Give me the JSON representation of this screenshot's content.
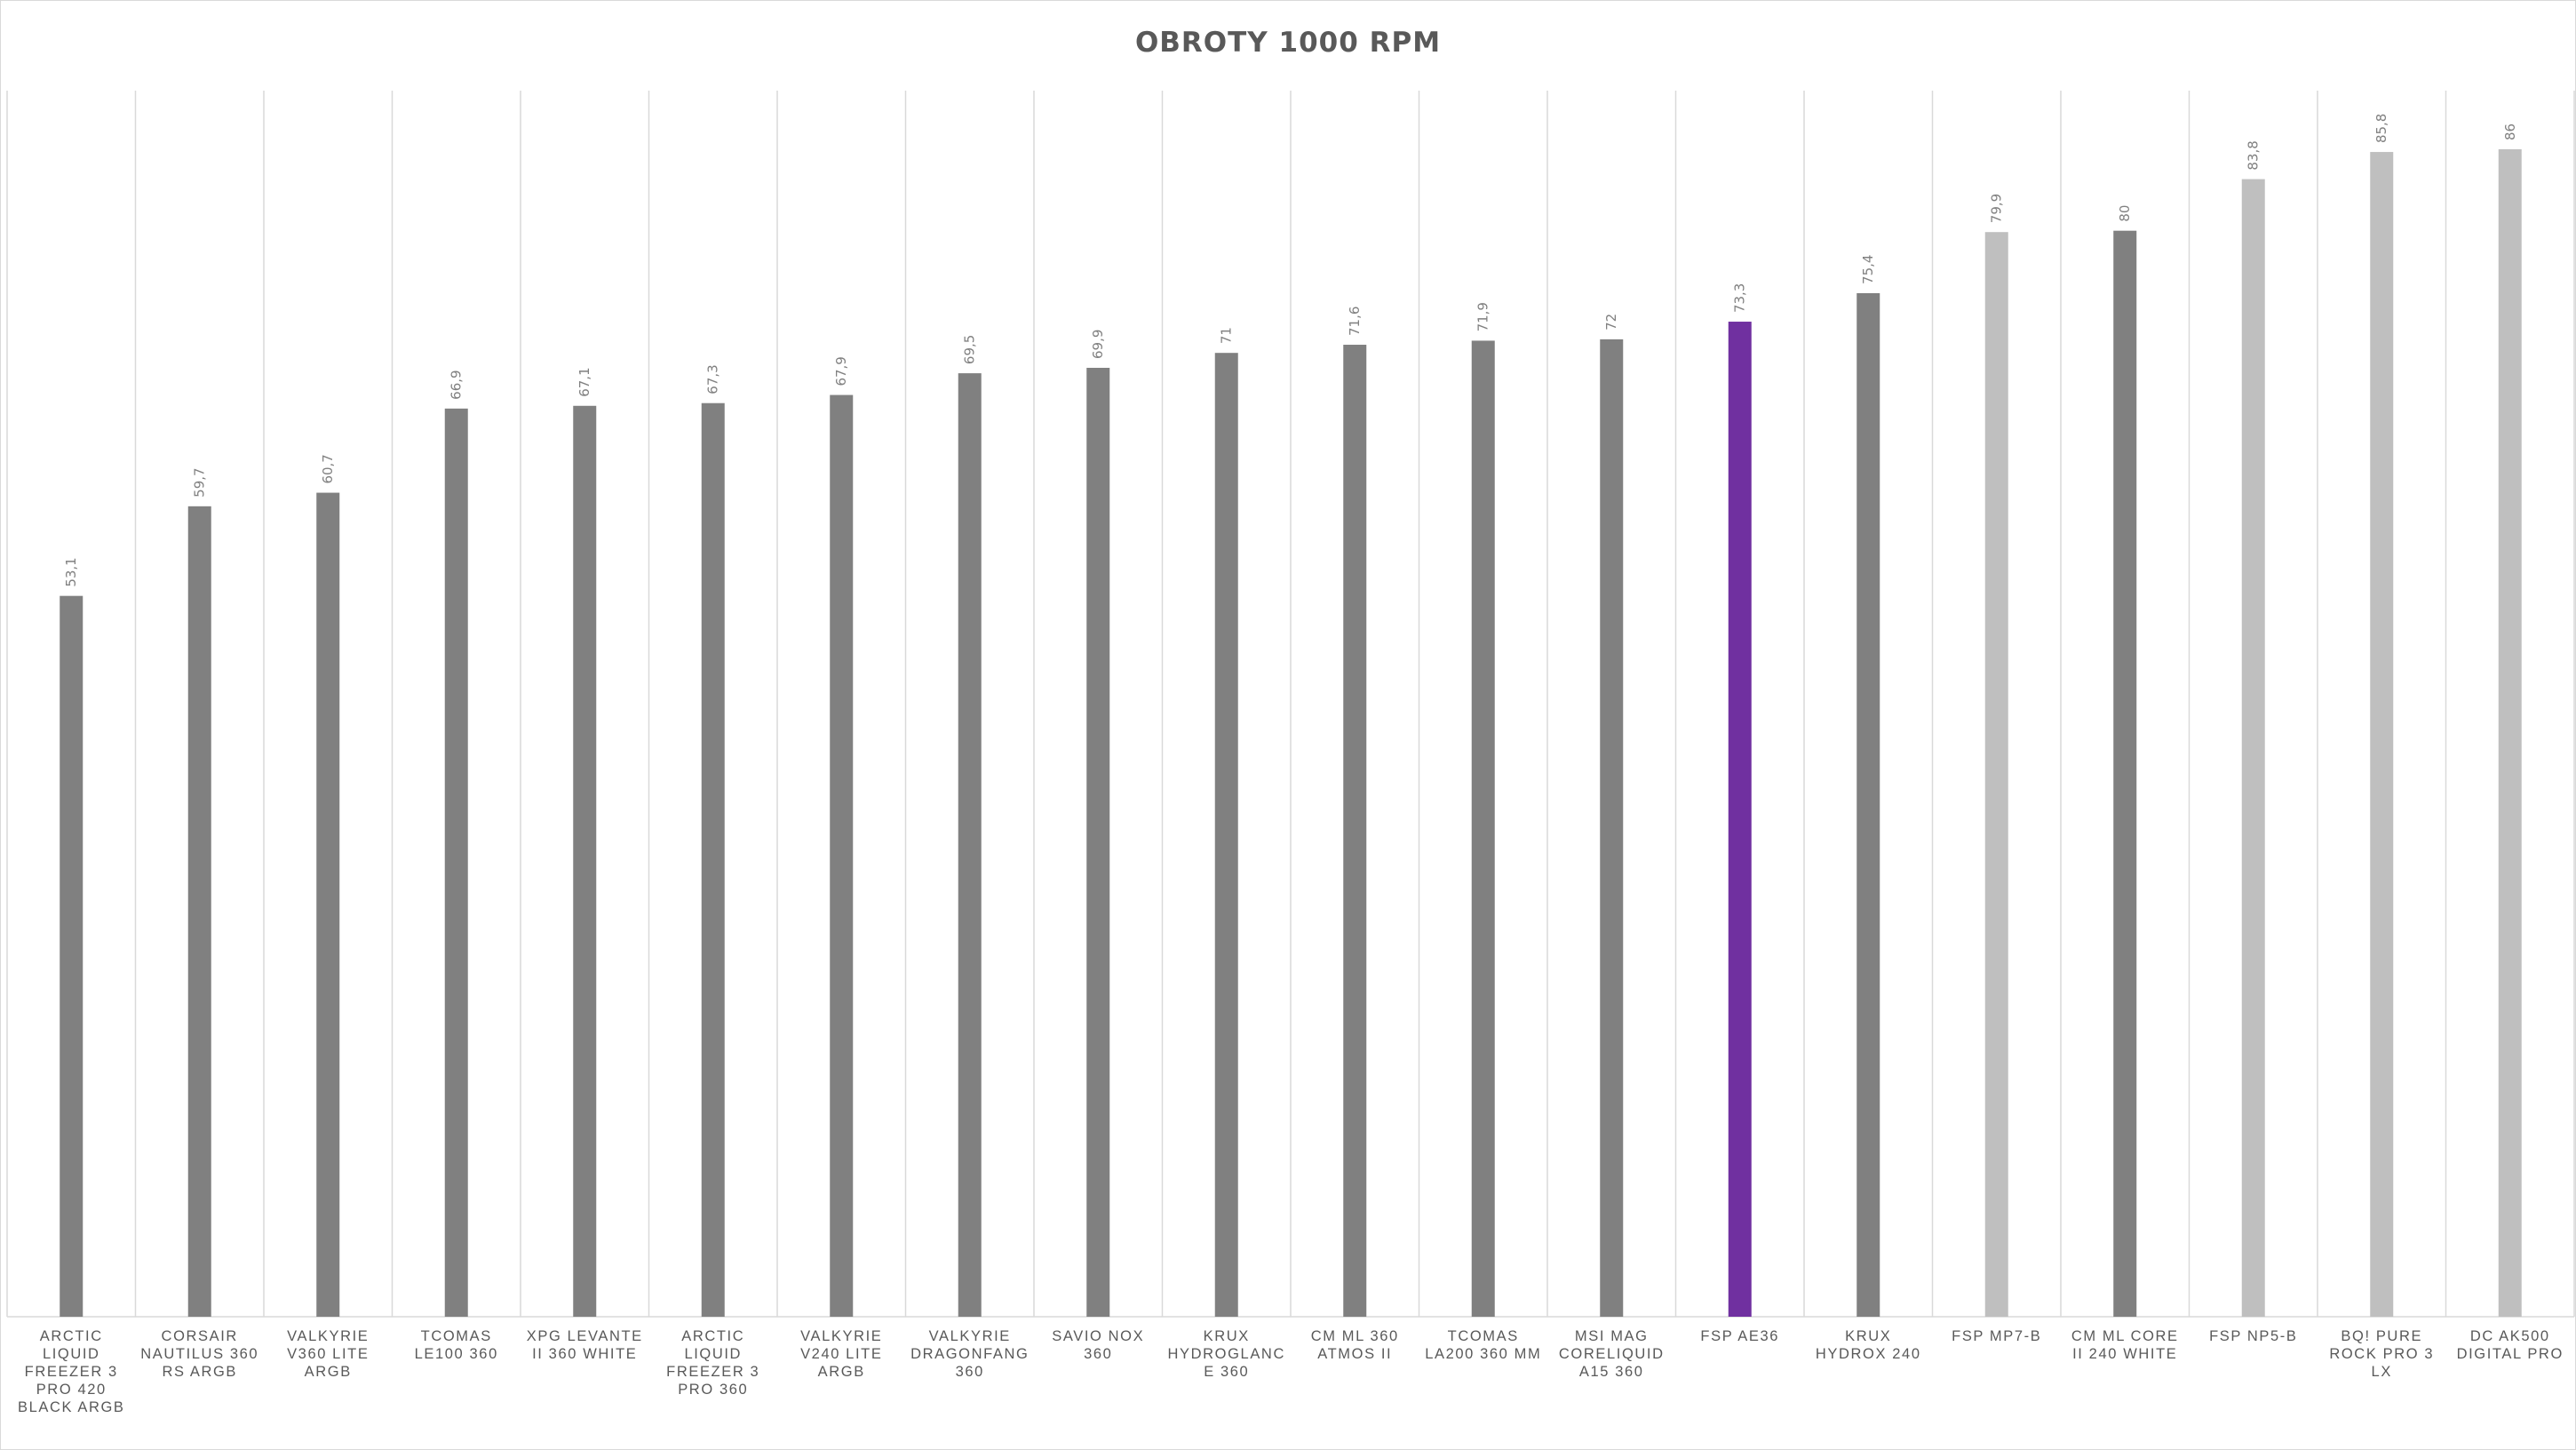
{
  "chart_data": {
    "type": "bar",
    "title": "OBROTY 1000 RPM",
    "xlabel": "",
    "ylabel": "",
    "ylim": [
      0,
      100
    ],
    "grid": "vertical category separators",
    "legend": "none",
    "data_labels": "on, rotated, above bars",
    "categories": [
      "ARCTIC LIQUID FREEZER 3 PRO 420 BLACK ARGB",
      "CORSAIR NAUTILUS 360 RS ARGB",
      "VALKYRIE V360 LITE ARGB",
      "TCOMAS LE100 360",
      "XPG LEVANTE II 360 WHITE",
      "ARCTIC LIQUID FREEZER 3 PRO 360",
      "VALKYRIE V240 LITE ARGB",
      "VALKYRIE DRAGONFANG 360",
      "SAVIO NOX 360",
      "KRUX HYDROGLANCE 360",
      "CM ML 360 ATMOS II",
      "TCOMAS LA200 360 MM",
      "MSI MAG CORELIQUID A15 360",
      "FSP AE36",
      "KRUX HYDROX 240",
      "FSP MP7-B",
      "CM ML CORE II 240 WHITE",
      "FSP NP5-B",
      "BQ! PURE ROCK PRO 3 LX",
      "DC AK500 DIGITAL PRO"
    ],
    "values": [
      53.1,
      59.7,
      60.7,
      66.9,
      67.1,
      67.3,
      67.9,
      69.5,
      69.9,
      71,
      71.6,
      71.9,
      72,
      73.3,
      75.4,
      79.9,
      80,
      83.8,
      85.8,
      86
    ],
    "value_labels": [
      "53,1",
      "59,7",
      "60,7",
      "66,9",
      "67,1",
      "67,3",
      "67,9",
      "69,5",
      "69,9",
      "71",
      "71,6",
      "71,9",
      "72",
      "73,3",
      "75,4",
      "79,9",
      "80",
      "83,8",
      "85,8",
      "86"
    ],
    "bar_colors": [
      "#808080",
      "#808080",
      "#808080",
      "#808080",
      "#808080",
      "#808080",
      "#808080",
      "#808080",
      "#808080",
      "#808080",
      "#808080",
      "#808080",
      "#808080",
      "#7030a0",
      "#808080",
      "#bfbfbf",
      "#808080",
      "#bfbfbf",
      "#bfbfbf",
      "#bfbfbf"
    ],
    "colors": {
      "default": "#808080",
      "highlight": "#7030a0",
      "light": "#bfbfbf",
      "grid": "#d9d9d9",
      "text": "#595959"
    }
  }
}
